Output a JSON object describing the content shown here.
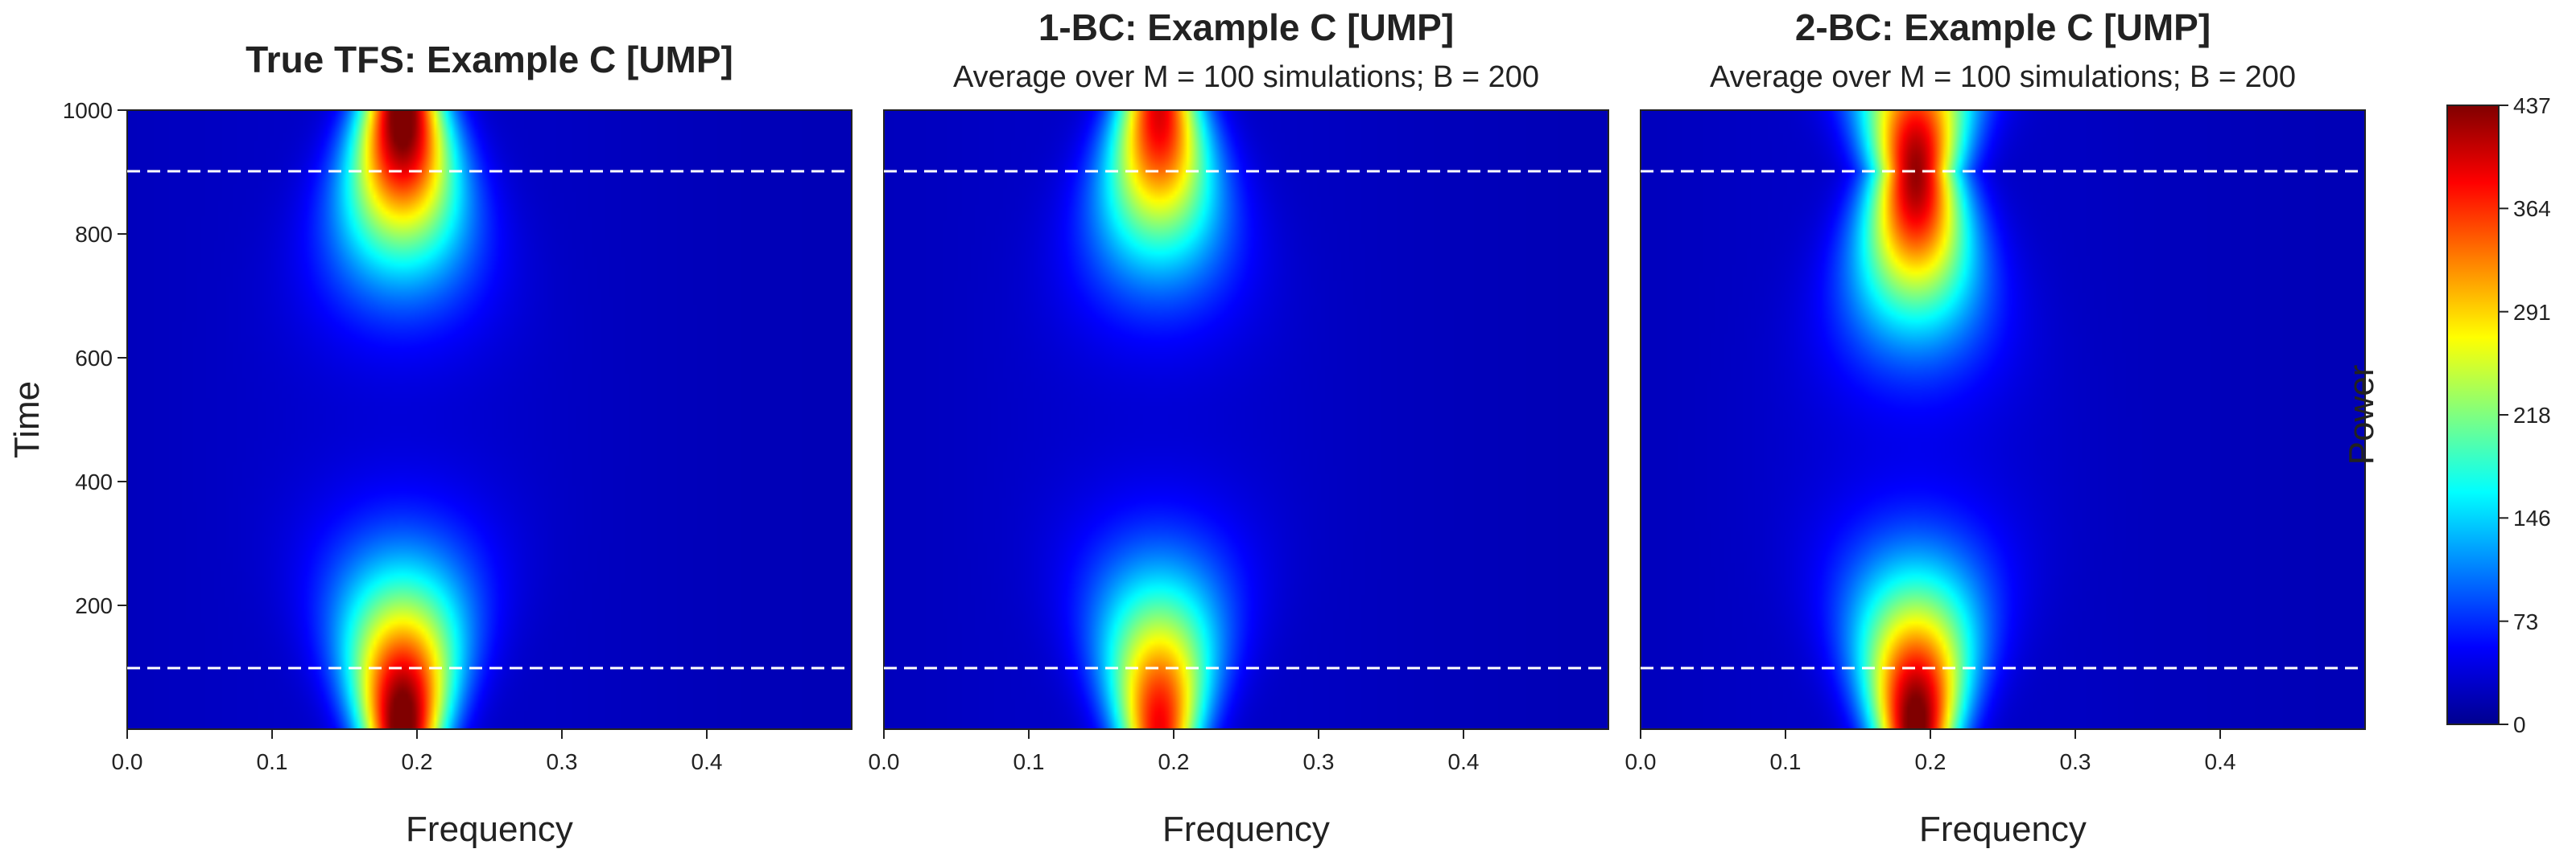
{
  "chart_data": [
    {
      "type": "heatmap",
      "title": "True TFS: Example C   [UMP]",
      "subtitle": "",
      "xlabel": "Frequency",
      "ylabel": "Time",
      "xlim": [
        0,
        0.5
      ],
      "ylim": [
        1,
        1000
      ],
      "xticks": [
        "0.0",
        "0.1",
        "0.2",
        "0.3",
        "0.4"
      ],
      "yticks": [
        "200",
        "400",
        "600",
        "800",
        "1000"
      ],
      "dashed_lines_time": [
        100,
        900
      ],
      "peaks": [
        {
          "frequency": 0.19,
          "time": 1000,
          "power": 437
        },
        {
          "frequency": 0.19,
          "time": 1,
          "power": 437
        }
      ]
    },
    {
      "type": "heatmap",
      "title": "1-BC: Example C   [UMP]",
      "subtitle": "Average over M = 100 simulations;  B = 200",
      "xlabel": "Frequency",
      "ylabel": "",
      "xlim": [
        0,
        0.5
      ],
      "ylim": [
        1,
        1000
      ],
      "xticks": [
        "0.0",
        "0.1",
        "0.2",
        "0.3",
        "0.4"
      ],
      "yticks": [],
      "dashed_lines_time": [
        100,
        900
      ],
      "peaks": [
        {
          "frequency": 0.19,
          "time": 1000,
          "power": 370
        },
        {
          "frequency": 0.19,
          "time": 1,
          "power": 360
        }
      ]
    },
    {
      "type": "heatmap",
      "title": "2-BC: Example C   [UMP]",
      "subtitle": "Average over M = 100 simulations;  B = 200",
      "xlabel": "Frequency",
      "ylabel": "",
      "xlim": [
        0,
        0.5
      ],
      "ylim": [
        1,
        1000
      ],
      "xticks": [
        "0.0",
        "0.1",
        "0.2",
        "0.3",
        "0.4"
      ],
      "yticks": [],
      "dashed_lines_time": [
        100,
        900
      ],
      "peaks": [
        {
          "frequency": 0.19,
          "time": 900,
          "power": 400
        },
        {
          "frequency": 0.19,
          "time": 1,
          "power": 430
        }
      ]
    }
  ],
  "colorbar": {
    "label": "Power",
    "min": 0,
    "max": 437,
    "ticks": [
      "0",
      "73",
      "146",
      "218",
      "291",
      "364",
      "437"
    ],
    "colormap": "jet",
    "colors": [
      "#00008f",
      "#0000ff",
      "#00ffff",
      "#ffff00",
      "#ff0000",
      "#800000"
    ]
  }
}
